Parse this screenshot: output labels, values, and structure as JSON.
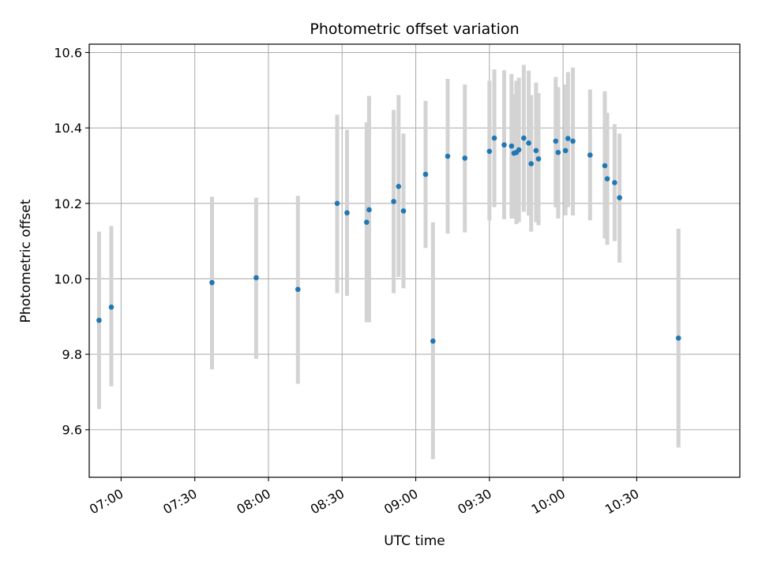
{
  "chart_data": {
    "type": "scatter",
    "title": "Photometric offset variation",
    "xlabel": "UTC time",
    "ylabel": "Photometric offset",
    "x_tick_labels": [
      "07:00",
      "07:30",
      "08:00",
      "08:30",
      "09:00",
      "09:30",
      "10:00",
      "10:30"
    ],
    "y_tick_labels": [
      "9.6",
      "9.8",
      "10.0",
      "10.2",
      "10.4",
      "10.6"
    ],
    "y_ticks": [
      9.6,
      9.8,
      10.0,
      10.2,
      10.4,
      10.6
    ],
    "x_ticks": [
      "07:00",
      "07:30",
      "08:00",
      "08:30",
      "09:00",
      "09:30",
      "10:00",
      "10:30"
    ],
    "xlim": [
      "06:47",
      "11:12"
    ],
    "ylim": [
      9.474,
      10.622
    ],
    "grid": true,
    "marker_color": "#1f77b4",
    "errorbar_color": "#d3d3d3",
    "points": [
      {
        "x": "06:51",
        "y": 9.89,
        "lo": 9.655,
        "hi": 10.125
      },
      {
        "x": "06:56",
        "y": 9.925,
        "lo": 9.715,
        "hi": 10.14
      },
      {
        "x": "07:37",
        "y": 9.99,
        "lo": 9.76,
        "hi": 10.218
      },
      {
        "x": "07:55",
        "y": 10.003,
        "lo": 9.788,
        "hi": 10.215
      },
      {
        "x": "08:12",
        "y": 9.972,
        "lo": 9.722,
        "hi": 10.22
      },
      {
        "x": "08:28",
        "y": 10.2,
        "lo": 9.962,
        "hi": 10.435
      },
      {
        "x": "08:32",
        "y": 10.175,
        "lo": 9.955,
        "hi": 10.395
      },
      {
        "x": "08:40",
        "y": 10.15,
        "lo": 9.885,
        "hi": 10.415
      },
      {
        "x": "08:41",
        "y": 10.183,
        "lo": 9.885,
        "hi": 10.485
      },
      {
        "x": "08:51",
        "y": 10.205,
        "lo": 9.962,
        "hi": 10.448
      },
      {
        "x": "08:53",
        "y": 10.245,
        "lo": 10.005,
        "hi": 10.487
      },
      {
        "x": "08:55",
        "y": 10.18,
        "lo": 9.975,
        "hi": 10.385
      },
      {
        "x": "09:04",
        "y": 10.277,
        "lo": 10.082,
        "hi": 10.472
      },
      {
        "x": "09:07",
        "y": 9.835,
        "lo": 9.522,
        "hi": 10.15
      },
      {
        "x": "09:13",
        "y": 10.325,
        "lo": 10.12,
        "hi": 10.53
      },
      {
        "x": "09:20",
        "y": 10.32,
        "lo": 10.123,
        "hi": 10.515
      },
      {
        "x": "09:30",
        "y": 10.338,
        "lo": 10.155,
        "hi": 10.525
      },
      {
        "x": "09:32",
        "y": 10.373,
        "lo": 10.19,
        "hi": 10.555
      },
      {
        "x": "09:36",
        "y": 10.355,
        "lo": 10.158,
        "hi": 10.553
      },
      {
        "x": "09:39",
        "y": 10.352,
        "lo": 10.16,
        "hi": 10.543
      },
      {
        "x": "09:40",
        "y": 10.333,
        "lo": 10.16,
        "hi": 10.49
      },
      {
        "x": "09:41",
        "y": 10.335,
        "lo": 10.145,
        "hi": 10.525
      },
      {
        "x": "09:42",
        "y": 10.342,
        "lo": 10.15,
        "hi": 10.533
      },
      {
        "x": "09:44",
        "y": 10.373,
        "lo": 10.178,
        "hi": 10.567
      },
      {
        "x": "09:46",
        "y": 10.36,
        "lo": 10.168,
        "hi": 10.552
      },
      {
        "x": "09:47",
        "y": 10.305,
        "lo": 10.125,
        "hi": 10.487
      },
      {
        "x": "09:49",
        "y": 10.34,
        "lo": 10.15,
        "hi": 10.52
      },
      {
        "x": "09:50",
        "y": 10.318,
        "lo": 10.142,
        "hi": 10.492
      },
      {
        "x": "09:57",
        "y": 10.365,
        "lo": 10.19,
        "hi": 10.535
      },
      {
        "x": "09:58",
        "y": 10.335,
        "lo": 10.16,
        "hi": 10.508
      },
      {
        "x": "10:01",
        "y": 10.34,
        "lo": 10.168,
        "hi": 10.515
      },
      {
        "x": "10:02",
        "y": 10.372,
        "lo": 10.19,
        "hi": 10.548
      },
      {
        "x": "10:04",
        "y": 10.365,
        "lo": 10.168,
        "hi": 10.56
      },
      {
        "x": "10:11",
        "y": 10.328,
        "lo": 10.155,
        "hi": 10.502
      },
      {
        "x": "10:17",
        "y": 10.3,
        "lo": 10.107,
        "hi": 10.497
      },
      {
        "x": "10:18",
        "y": 10.265,
        "lo": 10.09,
        "hi": 10.44
      },
      {
        "x": "10:21",
        "y": 10.255,
        "lo": 10.1,
        "hi": 10.41
      },
      {
        "x": "10:23",
        "y": 10.215,
        "lo": 10.043,
        "hi": 10.385
      },
      {
        "x": "10:47",
        "y": 9.843,
        "lo": 9.553,
        "hi": 10.133
      }
    ]
  }
}
